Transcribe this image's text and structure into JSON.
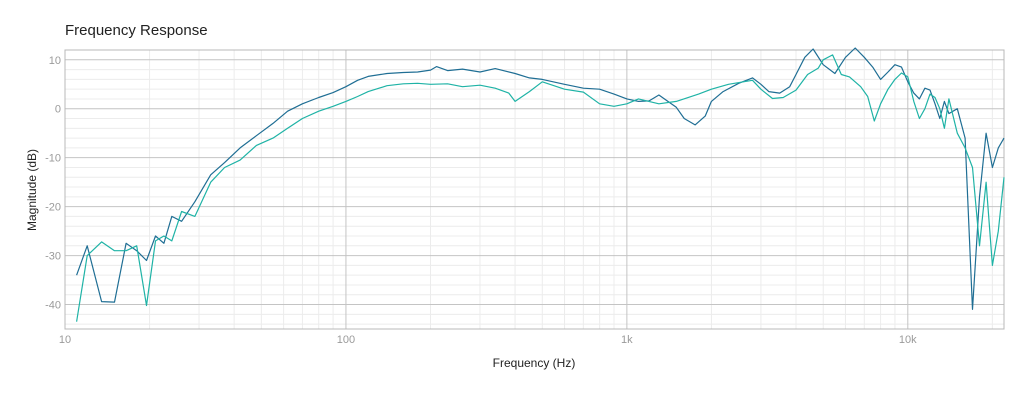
{
  "chart_data": {
    "type": "line",
    "title": "Frequency Response",
    "xlabel": "Frequency (Hz)",
    "ylabel": "Magnitude (dB)",
    "x_scale": "log",
    "xlim": [
      10,
      22000
    ],
    "ylim": [
      -45,
      12
    ],
    "grid": true,
    "legend": "none",
    "x_ticks": [
      {
        "value": 10,
        "label": "10"
      },
      {
        "value": 100,
        "label": "100"
      },
      {
        "value": 1000,
        "label": "1k"
      },
      {
        "value": 10000,
        "label": "10k"
      }
    ],
    "y_ticks": [
      {
        "value": 10,
        "label": "10"
      },
      {
        "value": 0,
        "label": "0"
      },
      {
        "value": -10,
        "label": "-10"
      },
      {
        "value": -20,
        "label": "-20"
      },
      {
        "value": -30,
        "label": "-30"
      },
      {
        "value": -40,
        "label": "-40"
      }
    ],
    "series": [
      {
        "color": "#1f6e94",
        "points": [
          [
            11,
            -34
          ],
          [
            12,
            -28
          ],
          [
            13.5,
            -39.4
          ],
          [
            15,
            -39.5
          ],
          [
            16.5,
            -27.5
          ],
          [
            18,
            -29
          ],
          [
            19.5,
            -31
          ],
          [
            21,
            -26
          ],
          [
            22.5,
            -27.5
          ],
          [
            24,
            -22
          ],
          [
            26,
            -23
          ],
          [
            29,
            -19
          ],
          [
            33,
            -13.5
          ],
          [
            37,
            -11
          ],
          [
            42,
            -8
          ],
          [
            48,
            -5.5
          ],
          [
            55,
            -3
          ],
          [
            62,
            -0.5
          ],
          [
            70,
            1
          ],
          [
            80,
            2.3
          ],
          [
            90,
            3.3
          ],
          [
            100,
            4.5
          ],
          [
            110,
            5.8
          ],
          [
            120,
            6.6
          ],
          [
            140,
            7.2
          ],
          [
            160,
            7.4
          ],
          [
            180,
            7.5
          ],
          [
            200,
            7.9
          ],
          [
            210,
            8.6
          ],
          [
            230,
            7.8
          ],
          [
            260,
            8.1
          ],
          [
            300,
            7.5
          ],
          [
            340,
            8.2
          ],
          [
            400,
            7.2
          ],
          [
            450,
            6.3
          ],
          [
            500,
            6
          ],
          [
            600,
            5
          ],
          [
            700,
            4.2
          ],
          [
            800,
            4
          ],
          [
            900,
            3
          ],
          [
            1000,
            2
          ],
          [
            1100,
            1.5
          ],
          [
            1200,
            1.6
          ],
          [
            1300,
            2.8
          ],
          [
            1400,
            1.5
          ],
          [
            1500,
            0.3
          ],
          [
            1600,
            -2
          ],
          [
            1750,
            -3.3
          ],
          [
            1900,
            -1.5
          ],
          [
            2000,
            1.5
          ],
          [
            2200,
            3.5
          ],
          [
            2500,
            5.2
          ],
          [
            2800,
            6.3
          ],
          [
            3000,
            5
          ],
          [
            3200,
            3.5
          ],
          [
            3500,
            3.2
          ],
          [
            3800,
            4.5
          ],
          [
            4000,
            7
          ],
          [
            4300,
            10.5
          ],
          [
            4600,
            12.2
          ],
          [
            5000,
            9
          ],
          [
            5500,
            7.2
          ],
          [
            6000,
            10.5
          ],
          [
            6500,
            12.4
          ],
          [
            7000,
            10.5
          ],
          [
            7500,
            8.5
          ],
          [
            8000,
            6
          ],
          [
            8500,
            7.5
          ],
          [
            9000,
            9
          ],
          [
            9500,
            8.5
          ],
          [
            10000,
            5.5
          ],
          [
            10500,
            3.2
          ],
          [
            11000,
            2
          ],
          [
            11500,
            4.2
          ],
          [
            12000,
            3.8
          ],
          [
            12500,
            1
          ],
          [
            13000,
            -2
          ],
          [
            13500,
            1.5
          ],
          [
            14000,
            -1
          ],
          [
            15000,
            0
          ],
          [
            16000,
            -6
          ],
          [
            17000,
            -41
          ],
          [
            18000,
            -18
          ],
          [
            19000,
            -5
          ],
          [
            20000,
            -12
          ],
          [
            21000,
            -8
          ],
          [
            22000,
            -6
          ]
        ]
      },
      {
        "color": "#1fb3a6",
        "points": [
          [
            11,
            -43.5
          ],
          [
            12,
            -30
          ],
          [
            13.5,
            -27.2
          ],
          [
            15,
            -29
          ],
          [
            16.5,
            -29
          ],
          [
            18,
            -28
          ],
          [
            19.5,
            -40.2
          ],
          [
            21,
            -27
          ],
          [
            22.5,
            -26
          ],
          [
            24,
            -27
          ],
          [
            26,
            -21
          ],
          [
            29,
            -22
          ],
          [
            33,
            -15
          ],
          [
            37,
            -12
          ],
          [
            42,
            -10.5
          ],
          [
            48,
            -7.5
          ],
          [
            55,
            -6
          ],
          [
            62,
            -4
          ],
          [
            70,
            -2
          ],
          [
            80,
            -0.5
          ],
          [
            90,
            0.5
          ],
          [
            100,
            1.5
          ],
          [
            110,
            2.5
          ],
          [
            120,
            3.5
          ],
          [
            140,
            4.7
          ],
          [
            160,
            5.1
          ],
          [
            180,
            5.2
          ],
          [
            200,
            5
          ],
          [
            230,
            5.1
          ],
          [
            260,
            4.5
          ],
          [
            300,
            4.8
          ],
          [
            340,
            4.2
          ],
          [
            380,
            3.2
          ],
          [
            400,
            1.5
          ],
          [
            450,
            3.5
          ],
          [
            500,
            5.5
          ],
          [
            600,
            4
          ],
          [
            700,
            3.4
          ],
          [
            800,
            1
          ],
          [
            900,
            0.5
          ],
          [
            1000,
            1
          ],
          [
            1100,
            2
          ],
          [
            1300,
            1
          ],
          [
            1500,
            1.5
          ],
          [
            1800,
            3
          ],
          [
            2000,
            4
          ],
          [
            2300,
            5
          ],
          [
            2600,
            5.5
          ],
          [
            2800,
            5.8
          ],
          [
            3000,
            4
          ],
          [
            3300,
            2.1
          ],
          [
            3600,
            2.3
          ],
          [
            4000,
            3.8
          ],
          [
            4400,
            7
          ],
          [
            4800,
            8.3
          ],
          [
            5000,
            10
          ],
          [
            5400,
            11
          ],
          [
            5800,
            7
          ],
          [
            6200,
            6.5
          ],
          [
            6800,
            4.5
          ],
          [
            7200,
            2.5
          ],
          [
            7600,
            -2.5
          ],
          [
            8000,
            1
          ],
          [
            8500,
            4
          ],
          [
            9000,
            6
          ],
          [
            9500,
            7.3
          ],
          [
            10000,
            6.5
          ],
          [
            10500,
            1.5
          ],
          [
            11000,
            -2
          ],
          [
            11500,
            0
          ],
          [
            12000,
            3
          ],
          [
            12500,
            2.3
          ],
          [
            13000,
            0
          ],
          [
            13500,
            -4
          ],
          [
            14000,
            2
          ],
          [
            15000,
            -5
          ],
          [
            16000,
            -8
          ],
          [
            17000,
            -12
          ],
          [
            18000,
            -28
          ],
          [
            19000,
            -15
          ],
          [
            20000,
            -32
          ],
          [
            21000,
            -25
          ],
          [
            22000,
            -14
          ]
        ]
      }
    ]
  }
}
